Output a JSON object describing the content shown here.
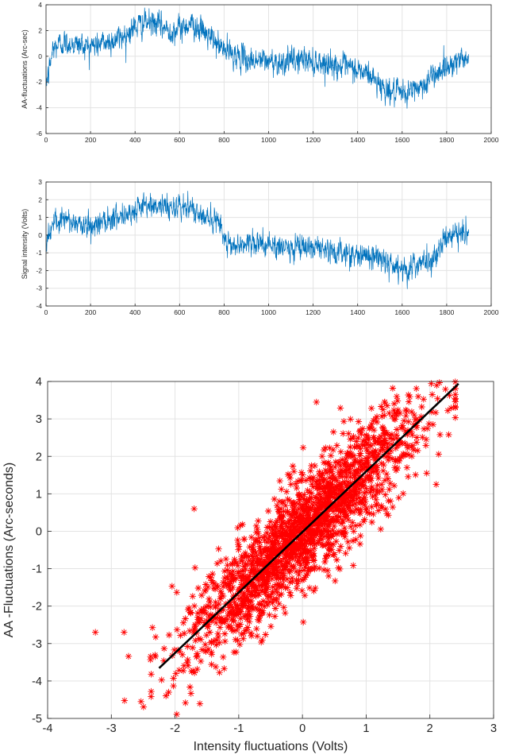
{
  "chart_data": [
    {
      "type": "line",
      "title": "",
      "xlabel": "",
      "ylabel": "AA-fluctuations (Arc-sec)",
      "xlim": [
        0,
        2000
      ],
      "ylim": [
        -6,
        4
      ],
      "xticks": [
        0,
        200,
        400,
        600,
        800,
        1000,
        1200,
        1400,
        1600,
        1800,
        2000
      ],
      "yticks": [
        -6,
        -4,
        -2,
        0,
        2,
        4
      ],
      "grid": true,
      "color": "#0072BD",
      "n_points": 1900,
      "trend": [
        [
          0,
          -2.0
        ],
        [
          10,
          -1.5
        ],
        [
          30,
          0.5
        ],
        [
          60,
          1.0
        ],
        [
          100,
          1.0
        ],
        [
          150,
          0.9
        ],
        [
          200,
          0.8
        ],
        [
          250,
          1.0
        ],
        [
          300,
          1.2
        ],
        [
          350,
          1.6
        ],
        [
          400,
          2.3
        ],
        [
          450,
          2.6
        ],
        [
          500,
          2.5
        ],
        [
          550,
          2.0
        ],
        [
          600,
          2.1
        ],
        [
          650,
          2.6
        ],
        [
          700,
          2.0
        ],
        [
          750,
          1.2
        ],
        [
          800,
          0.5
        ],
        [
          850,
          0.1
        ],
        [
          900,
          -0.3
        ],
        [
          950,
          -0.3
        ],
        [
          1000,
          -0.4
        ],
        [
          1050,
          -0.4
        ],
        [
          1100,
          -0.4
        ],
        [
          1150,
          -0.2
        ],
        [
          1200,
          -0.4
        ],
        [
          1250,
          -0.5
        ],
        [
          1300,
          -0.7
        ],
        [
          1350,
          -0.9
        ],
        [
          1400,
          -1.1
        ],
        [
          1450,
          -1.4
        ],
        [
          1500,
          -2.2
        ],
        [
          1550,
          -2.8
        ],
        [
          1600,
          -3.0
        ],
        [
          1650,
          -2.6
        ],
        [
          1700,
          -2.2
        ],
        [
          1750,
          -1.3
        ],
        [
          1800,
          -0.8
        ],
        [
          1850,
          -0.3
        ],
        [
          1900,
          0.1
        ]
      ]
    },
    {
      "type": "line",
      "title": "",
      "xlabel": "",
      "ylabel": "Signal intensity (Volts)",
      "xlim": [
        0,
        2000
      ],
      "ylim": [
        -4,
        3
      ],
      "xticks": [
        0,
        200,
        400,
        600,
        800,
        1000,
        1200,
        1400,
        1600,
        1800,
        2000
      ],
      "yticks": [
        -4,
        -3,
        -2,
        -1,
        0,
        1,
        2,
        3
      ],
      "grid": true,
      "color": "#0072BD",
      "n_points": 1900,
      "trend": [
        [
          0,
          -0.3
        ],
        [
          20,
          0.3
        ],
        [
          50,
          0.8
        ],
        [
          100,
          0.8
        ],
        [
          150,
          0.6
        ],
        [
          200,
          0.5
        ],
        [
          250,
          0.8
        ],
        [
          300,
          1.0
        ],
        [
          350,
          1.2
        ],
        [
          400,
          1.4
        ],
        [
          450,
          1.6
        ],
        [
          500,
          1.7
        ],
        [
          550,
          1.6
        ],
        [
          600,
          1.6
        ],
        [
          650,
          1.5
        ],
        [
          700,
          1.2
        ],
        [
          750,
          0.8
        ],
        [
          790,
          0.6
        ],
        [
          800,
          -0.4
        ],
        [
          850,
          -0.5
        ],
        [
          900,
          -0.5
        ],
        [
          950,
          -0.5
        ],
        [
          1000,
          -0.6
        ],
        [
          1050,
          -0.7
        ],
        [
          1100,
          -0.7
        ],
        [
          1150,
          -0.6
        ],
        [
          1200,
          -0.8
        ],
        [
          1250,
          -0.9
        ],
        [
          1300,
          -1.0
        ],
        [
          1350,
          -1.0
        ],
        [
          1400,
          -1.1
        ],
        [
          1450,
          -1.2
        ],
        [
          1500,
          -1.3
        ],
        [
          1550,
          -1.6
        ],
        [
          1600,
          -1.9
        ],
        [
          1650,
          -1.8
        ],
        [
          1700,
          -1.6
        ],
        [
          1750,
          -1.3
        ],
        [
          1780,
          -0.5
        ],
        [
          1800,
          -0.2
        ],
        [
          1850,
          0.1
        ],
        [
          1900,
          0.1
        ]
      ]
    },
    {
      "type": "scatter",
      "title": "",
      "xlabel": "Intensity fluctuations (Volts)",
      "ylabel": "AA -Fluctuations (Arc-seconds)",
      "xlim": [
        -4,
        3
      ],
      "ylim": [
        -5,
        4
      ],
      "xticks": [
        -4,
        -3,
        -2,
        -1,
        0,
        1,
        2,
        3
      ],
      "yticks": [
        -5,
        -4,
        -3,
        -2,
        -1,
        0,
        1,
        2,
        3,
        4
      ],
      "grid": true,
      "marker": "*",
      "marker_color": "#FF0000",
      "n_points": 1900,
      "x_center": 0.0,
      "x_std": 1.0,
      "residual_std": 0.72,
      "x_extent": [
        -3.3,
        2.4
      ],
      "fit_line": {
        "color": "#000000",
        "slope": 1.616,
        "intercept": -0.02,
        "x": [
          -2.25,
          2.45
        ]
      },
      "outliers": [
        [
          -3.25,
          -2.7
        ],
        [
          -2.8,
          -2.7
        ],
        [
          -2.1,
          -4.3
        ],
        [
          -1.7,
          0.6
        ],
        [
          0.22,
          3.45
        ],
        [
          1.95,
          1.55
        ],
        [
          2.1,
          1.25
        ],
        [
          2.05,
          2.85
        ]
      ]
    }
  ]
}
